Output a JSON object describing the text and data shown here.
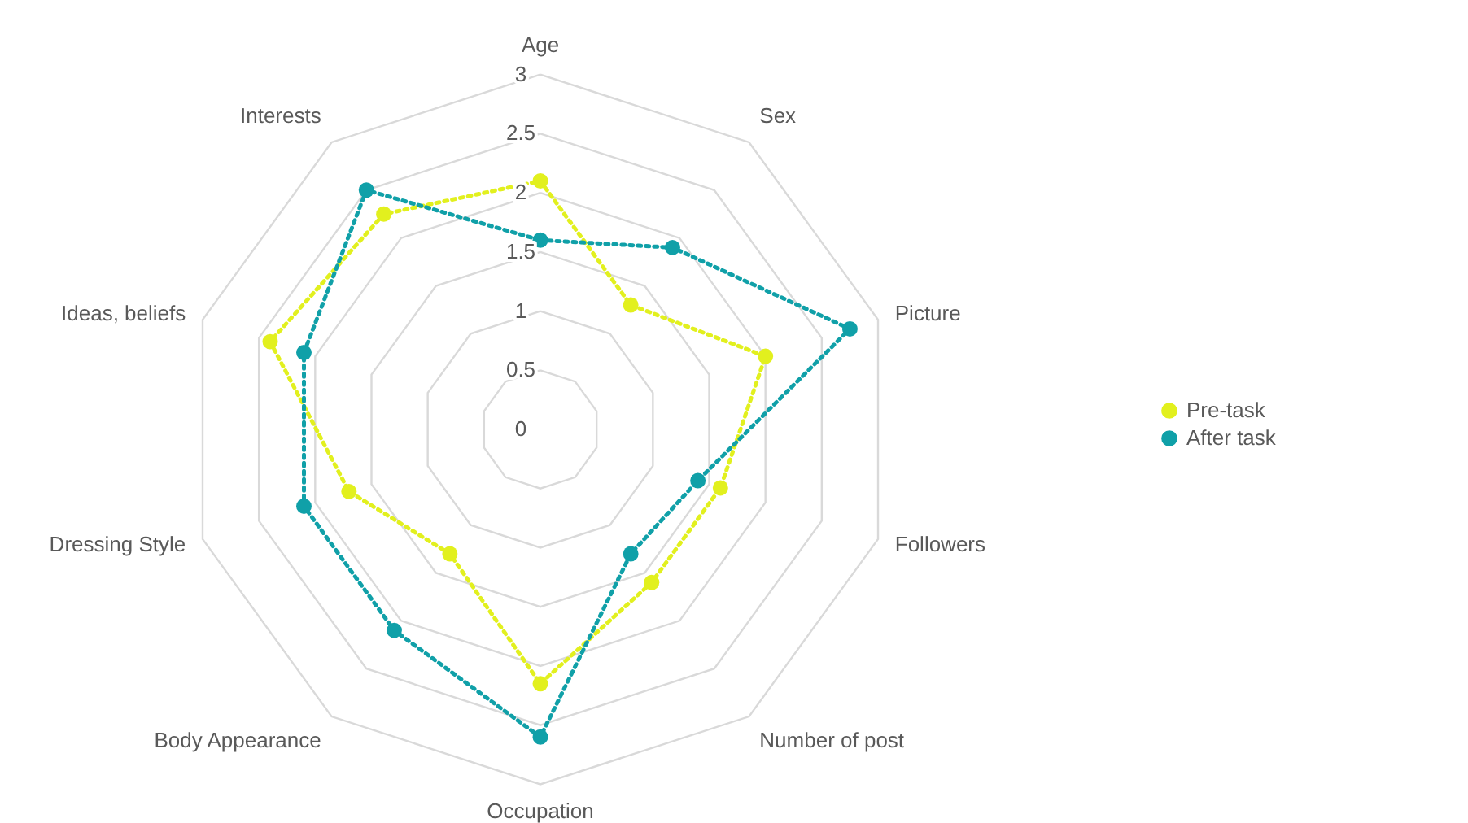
{
  "chart_data": {
    "type": "radar",
    "categories": [
      "Age",
      "Sex",
      "Picture",
      "Followers",
      "Number of post",
      "Occupation",
      "Body Appearance",
      "Dressing Style",
      "Ideas, beliefs",
      "Interests"
    ],
    "series": [
      {
        "name": "Pre-task",
        "color": "#e2f01e",
        "values": [
          2.1,
          1.3,
          2.0,
          1.6,
          1.6,
          2.15,
          1.3,
          1.7,
          2.4,
          2.25
        ]
      },
      {
        "name": "After task",
        "color": "#10a0a8",
        "values": [
          1.6,
          1.9,
          2.75,
          1.4,
          1.3,
          2.6,
          2.1,
          2.1,
          2.1,
          2.5
        ]
      }
    ],
    "ylim": [
      0,
      3
    ],
    "yticks": [
      0,
      0.5,
      1,
      1.5,
      2,
      2.5,
      3
    ],
    "grid": true,
    "legend": "right",
    "marker": "circle",
    "line_style": "dotted"
  }
}
